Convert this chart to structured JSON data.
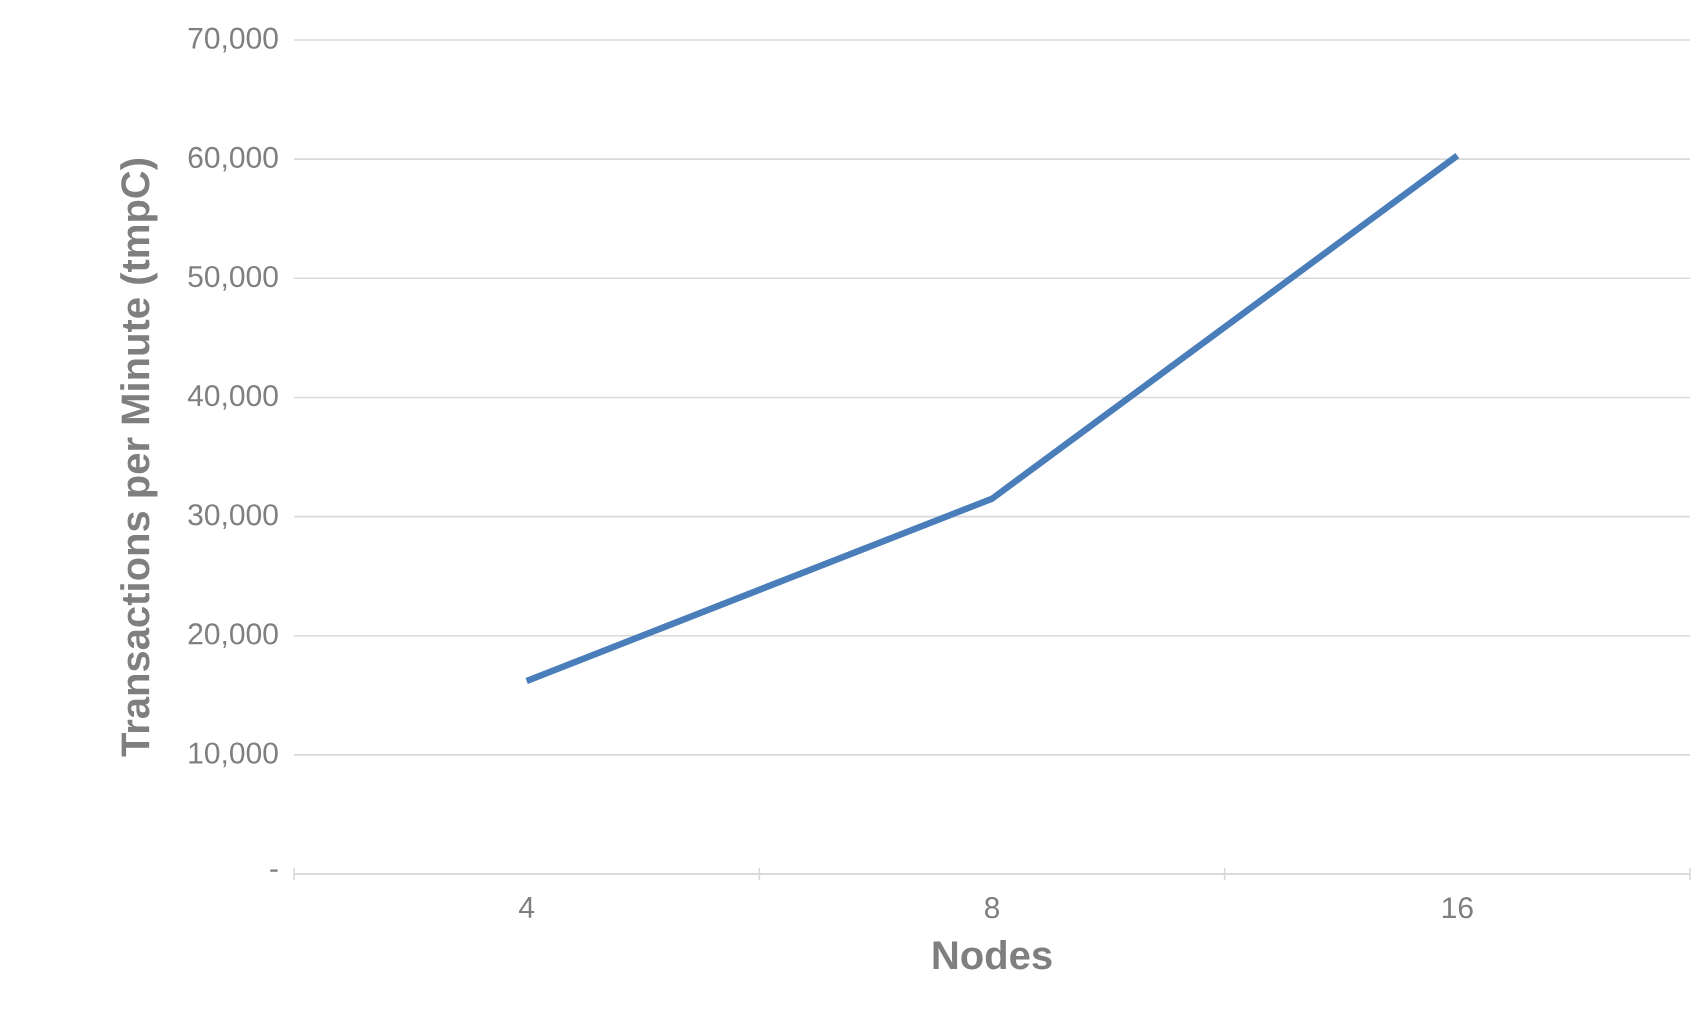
{
  "chart_data": {
    "type": "line",
    "xlabel": "Nodes",
    "ylabel": "Transactions per Minute (tmpC)",
    "categories": [
      "4",
      "8",
      "16"
    ],
    "series": [
      {
        "color": "#4a7ebb",
        "values": [
          16200,
          31500,
          60300
        ]
      }
    ],
    "ylim": [
      0,
      70000
    ],
    "yticks": [
      {
        "value": 0,
        "label": "-"
      },
      {
        "value": 10000,
        "label": "10,000"
      },
      {
        "value": 20000,
        "label": "20,000"
      },
      {
        "value": 30000,
        "label": "30,000"
      },
      {
        "value": 40000,
        "label": "40,000"
      },
      {
        "value": 50000,
        "label": "50,000"
      },
      {
        "value": 60000,
        "label": "60,000"
      },
      {
        "value": 70000,
        "label": "70,000"
      }
    ],
    "grid": "y",
    "marker": "none",
    "line_style": "solid"
  }
}
